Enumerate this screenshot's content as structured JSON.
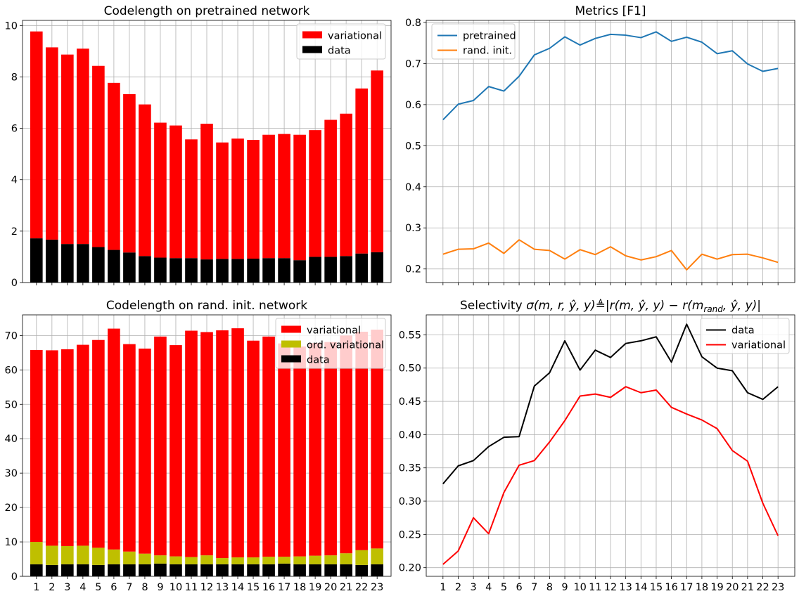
{
  "chart_data": [
    {
      "type": "bar",
      "stacked": true,
      "title": "Codelength on pretrained network",
      "xlabel": "",
      "ylabel": "",
      "categories": [
        "1",
        "2",
        "3",
        "4",
        "5",
        "6",
        "7",
        "8",
        "9",
        "10",
        "11",
        "12",
        "13",
        "14",
        "15",
        "16",
        "17",
        "18",
        "19",
        "20",
        "21",
        "22",
        "23"
      ],
      "show_xtick_labels": false,
      "ylim": [
        0,
        10.2
      ],
      "yticks": [
        0,
        2,
        4,
        6,
        8,
        10
      ],
      "grid": true,
      "legend_position": "top-right",
      "series": [
        {
          "name": "data",
          "color": "#000000",
          "values": [
            1.72,
            1.67,
            1.5,
            1.5,
            1.38,
            1.27,
            1.17,
            1.03,
            0.97,
            0.95,
            0.95,
            0.9,
            0.92,
            0.92,
            0.93,
            0.95,
            0.95,
            0.87,
            1.0,
            1.0,
            1.03,
            1.13,
            1.18
          ]
        },
        {
          "name": "variational",
          "color": "#ff0000",
          "values": [
            8.05,
            7.48,
            7.37,
            7.6,
            7.05,
            6.5,
            6.16,
            5.9,
            5.25,
            5.16,
            4.62,
            5.28,
            4.53,
            4.68,
            4.62,
            4.8,
            4.83,
            4.88,
            4.93,
            5.33,
            5.54,
            6.42,
            7.07
          ]
        }
      ],
      "legend_order": [
        "variational",
        "data"
      ]
    },
    {
      "type": "line",
      "title": "Metrics [F1]",
      "xlabel": "",
      "ylabel": "",
      "x": [
        1,
        2,
        3,
        4,
        5,
        6,
        7,
        8,
        9,
        10,
        11,
        12,
        13,
        14,
        15,
        16,
        17,
        18,
        19,
        20,
        21,
        22,
        23
      ],
      "show_xtick_labels": false,
      "xlim": [
        -0.1,
        24.1
      ],
      "ylim": [
        0.167,
        0.805
      ],
      "yticks": [
        0.2,
        0.3,
        0.4,
        0.5,
        0.6,
        0.7,
        0.8
      ],
      "ytick_labels": [
        "0.2",
        "0.3",
        "0.4",
        "0.5",
        "0.6",
        "0.7",
        "0.8"
      ],
      "grid": true,
      "legend_position": "top-left",
      "series": [
        {
          "name": "pretrained",
          "color": "#1f77b4",
          "values": [
            0.563,
            0.601,
            0.61,
            0.644,
            0.633,
            0.669,
            0.721,
            0.737,
            0.765,
            0.745,
            0.761,
            0.771,
            0.769,
            0.763,
            0.777,
            0.754,
            0.764,
            0.752,
            0.724,
            0.731,
            0.699,
            0.681,
            0.688
          ]
        },
        {
          "name": "rand. init.",
          "color": "#ff7f0e",
          "values": [
            0.236,
            0.248,
            0.249,
            0.263,
            0.238,
            0.271,
            0.248,
            0.245,
            0.224,
            0.247,
            0.235,
            0.254,
            0.232,
            0.222,
            0.23,
            0.245,
            0.198,
            0.236,
            0.224,
            0.235,
            0.236,
            0.227,
            0.216
          ]
        }
      ]
    },
    {
      "type": "bar",
      "stacked": true,
      "title": "Codelength on rand. init. network",
      "xlabel": "",
      "ylabel": "",
      "categories": [
        "1",
        "2",
        "3",
        "4",
        "5",
        "6",
        "7",
        "8",
        "9",
        "10",
        "11",
        "12",
        "13",
        "14",
        "15",
        "16",
        "17",
        "18",
        "19",
        "20",
        "21",
        "22",
        "23"
      ],
      "show_xtick_labels": true,
      "ylim": [
        0,
        76
      ],
      "yticks": [
        0,
        10,
        20,
        30,
        40,
        50,
        60,
        70
      ],
      "grid": true,
      "legend_position": "top-right",
      "series": [
        {
          "name": "data",
          "color": "#000000",
          "values": [
            3.5,
            3.3,
            3.5,
            3.5,
            3.3,
            3.5,
            3.5,
            3.5,
            3.7,
            3.5,
            3.5,
            3.5,
            3.5,
            3.5,
            3.5,
            3.5,
            3.7,
            3.5,
            3.5,
            3.5,
            3.5,
            3.3,
            3.5
          ]
        },
        {
          "name": "ord. variational",
          "color": "#bfbf00",
          "values": [
            6.5,
            5.6,
            5.3,
            5.4,
            5.0,
            4.3,
            3.7,
            3.1,
            2.4,
            2.3,
            2.1,
            2.6,
            1.8,
            2.0,
            2.0,
            2.2,
            2.0,
            2.3,
            2.5,
            2.6,
            3.2,
            4.3,
            4.6
          ]
        },
        {
          "name": "variational",
          "color": "#ff0000",
          "values": [
            55.8,
            56.8,
            57.2,
            58.4,
            60.4,
            64.2,
            60.3,
            59.6,
            63.6,
            61.4,
            65.8,
            64.9,
            66.2,
            66.6,
            63.0,
            64.0,
            62.0,
            61.0,
            61.8,
            62.0,
            63.3,
            63.5,
            63.6
          ]
        }
      ],
      "legend_order": [
        "variational",
        "ord. variational",
        "data"
      ]
    },
    {
      "type": "line",
      "title": "Selectivity σ(m, r, ŷ, y)≜|r(m, ŷ, y) − r(m_rand, ŷ, y)|",
      "title_parts": [
        "Selectivity ",
        "σ(m, r, ŷ, y)≜|r(m, ŷ, y) − r(m",
        "rand",
        ", ŷ, y)|"
      ],
      "xlabel": "",
      "ylabel": "",
      "x": [
        1,
        2,
        3,
        4,
        5,
        6,
        7,
        8,
        9,
        10,
        11,
        12,
        13,
        14,
        15,
        16,
        17,
        18,
        19,
        20,
        21,
        22,
        23
      ],
      "show_xtick_labels": true,
      "xlim": [
        -0.1,
        24.1
      ],
      "ylim": [
        0.187,
        0.58
      ],
      "yticks": [
        0.2,
        0.25,
        0.3,
        0.35,
        0.4,
        0.45,
        0.5,
        0.55
      ],
      "ytick_labels": [
        "0.20",
        "0.25",
        "0.30",
        "0.35",
        "0.40",
        "0.45",
        "0.50",
        "0.55"
      ],
      "grid": true,
      "legend_position": "top-right",
      "series": [
        {
          "name": "data",
          "color": "#000000",
          "values": [
            0.326,
            0.353,
            0.361,
            0.382,
            0.396,
            0.397,
            0.473,
            0.493,
            0.541,
            0.497,
            0.527,
            0.516,
            0.537,
            0.541,
            0.547,
            0.509,
            0.566,
            0.517,
            0.5,
            0.496,
            0.463,
            0.453,
            0.472
          ]
        },
        {
          "name": "variational",
          "color": "#ff0000",
          "values": [
            0.205,
            0.225,
            0.275,
            0.251,
            0.313,
            0.354,
            0.361,
            0.389,
            0.421,
            0.458,
            0.461,
            0.456,
            0.472,
            0.463,
            0.467,
            0.441,
            0.431,
            0.422,
            0.409,
            0.376,
            0.36,
            0.297,
            0.248
          ]
        }
      ]
    }
  ]
}
